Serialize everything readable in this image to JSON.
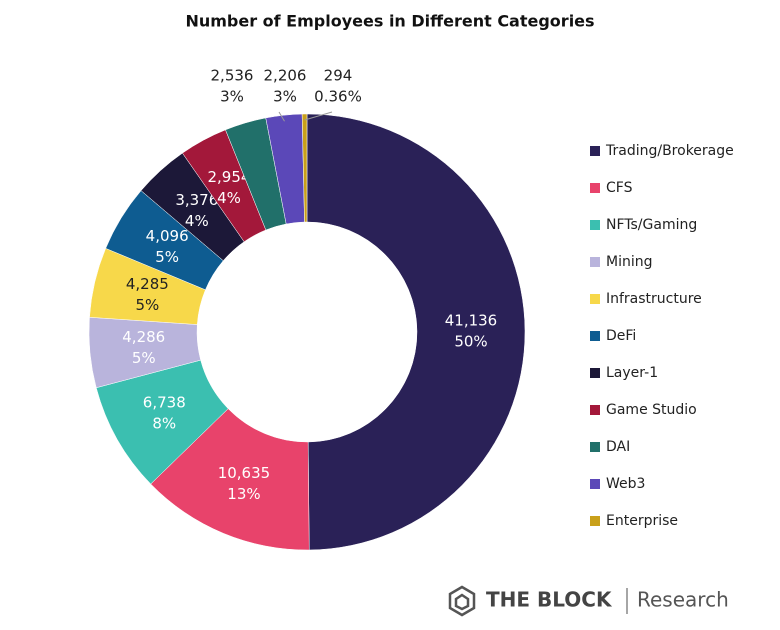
{
  "chart_data": {
    "type": "donut",
    "title": "Number of Employees in Different Categories",
    "categories": [
      "Trading/Brokerage",
      "CFS",
      "NFTs/Gaming",
      "Mining",
      "Infrastructure",
      "DeFi",
      "Layer-1",
      "Game Studio",
      "DAI",
      "Web3",
      "Enterprise"
    ],
    "values": [
      41136,
      10635,
      6738,
      4286,
      4285,
      4096,
      3376,
      2954,
      2536,
      2206,
      294
    ],
    "value_labels": [
      "41,136",
      "10,635",
      "6,738",
      "4,286",
      "4,285",
      "4,096",
      "3,376",
      "2,954",
      "2,536",
      "2,206",
      "294"
    ],
    "percent_labels": [
      "50%",
      "13%",
      "8%",
      "5%",
      "5%",
      "5%",
      "4%",
      "4%",
      "3%",
      "3%",
      "0.36%"
    ],
    "colors": [
      "#2a2157",
      "#e8436b",
      "#3bbfb0",
      "#b9b4dc",
      "#f7d84a",
      "#0e5c91",
      "#1c1838",
      "#a3183a",
      "#21706a",
      "#5b48b8",
      "#c9a01a"
    ],
    "legend": "right"
  },
  "footer": {
    "brand": "THE BLOCK",
    "section": "Research"
  }
}
